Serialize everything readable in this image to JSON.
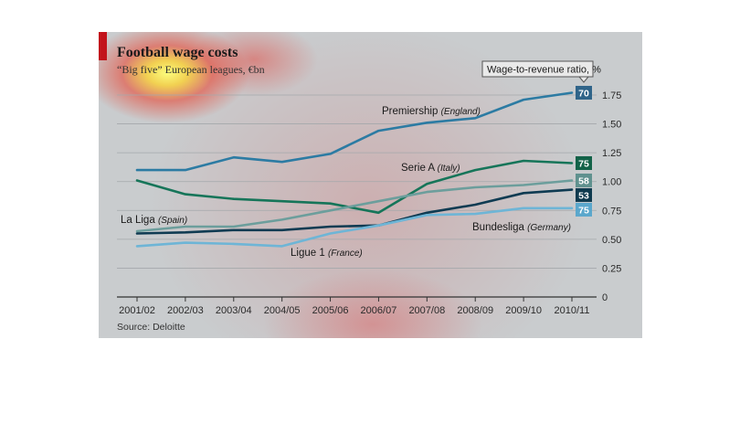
{
  "chart_data": {
    "type": "line",
    "title": "Football wage costs",
    "subtitle": "“Big five” European leagues, €bn",
    "source": "Source: Deloitte",
    "ratio_label": "Wage-to-revenue ratio, %",
    "categories": [
      "2001/02",
      "2002/03",
      "2003/04",
      "2004/05",
      "2005/06",
      "2006/07",
      "2007/08",
      "2008/09",
      "2009/10",
      "2010/11"
    ],
    "ylim": [
      0,
      1.75
    ],
    "yticks": [
      "0",
      "0.25",
      "0.50",
      "0.75",
      "1.00",
      "1.25",
      "1.50",
      "1.75"
    ],
    "series": [
      {
        "name": "Premiership",
        "country": "(England)",
        "color": "#2c7ba3",
        "ratio": "70",
        "ratio_bg": "#2f6489",
        "values": [
          1.1,
          1.1,
          1.21,
          1.17,
          1.24,
          1.44,
          1.51,
          1.55,
          1.71,
          1.77
        ]
      },
      {
        "name": "Serie A",
        "country": "(Italy)",
        "color": "#167559",
        "ratio": "75",
        "ratio_bg": "#126248",
        "values": [
          1.01,
          0.89,
          0.85,
          0.83,
          0.81,
          0.73,
          0.98,
          1.1,
          1.18,
          1.16
        ]
      },
      {
        "name": "La Liga",
        "country": "(Spain)",
        "color": "#6c9e9c",
        "ratio": "58",
        "ratio_bg": "#5f918e",
        "values": [
          0.57,
          0.61,
          0.61,
          0.67,
          0.75,
          0.83,
          0.91,
          0.95,
          0.97,
          1.01
        ]
      },
      {
        "name": "Bundesliga",
        "country": "(Germany)",
        "color": "#0f3b52",
        "ratio": "53",
        "ratio_bg": "#0e3a4e",
        "values": [
          0.55,
          0.56,
          0.58,
          0.58,
          0.61,
          0.62,
          0.73,
          0.8,
          0.9,
          0.93
        ]
      },
      {
        "name": "Ligue 1",
        "country": "(France)",
        "color": "#6eb5d6",
        "ratio": "75",
        "ratio_bg": "#5aa7cc",
        "values": [
          0.44,
          0.47,
          0.46,
          0.44,
          0.55,
          0.62,
          0.71,
          0.72,
          0.77,
          0.77
        ]
      }
    ]
  }
}
